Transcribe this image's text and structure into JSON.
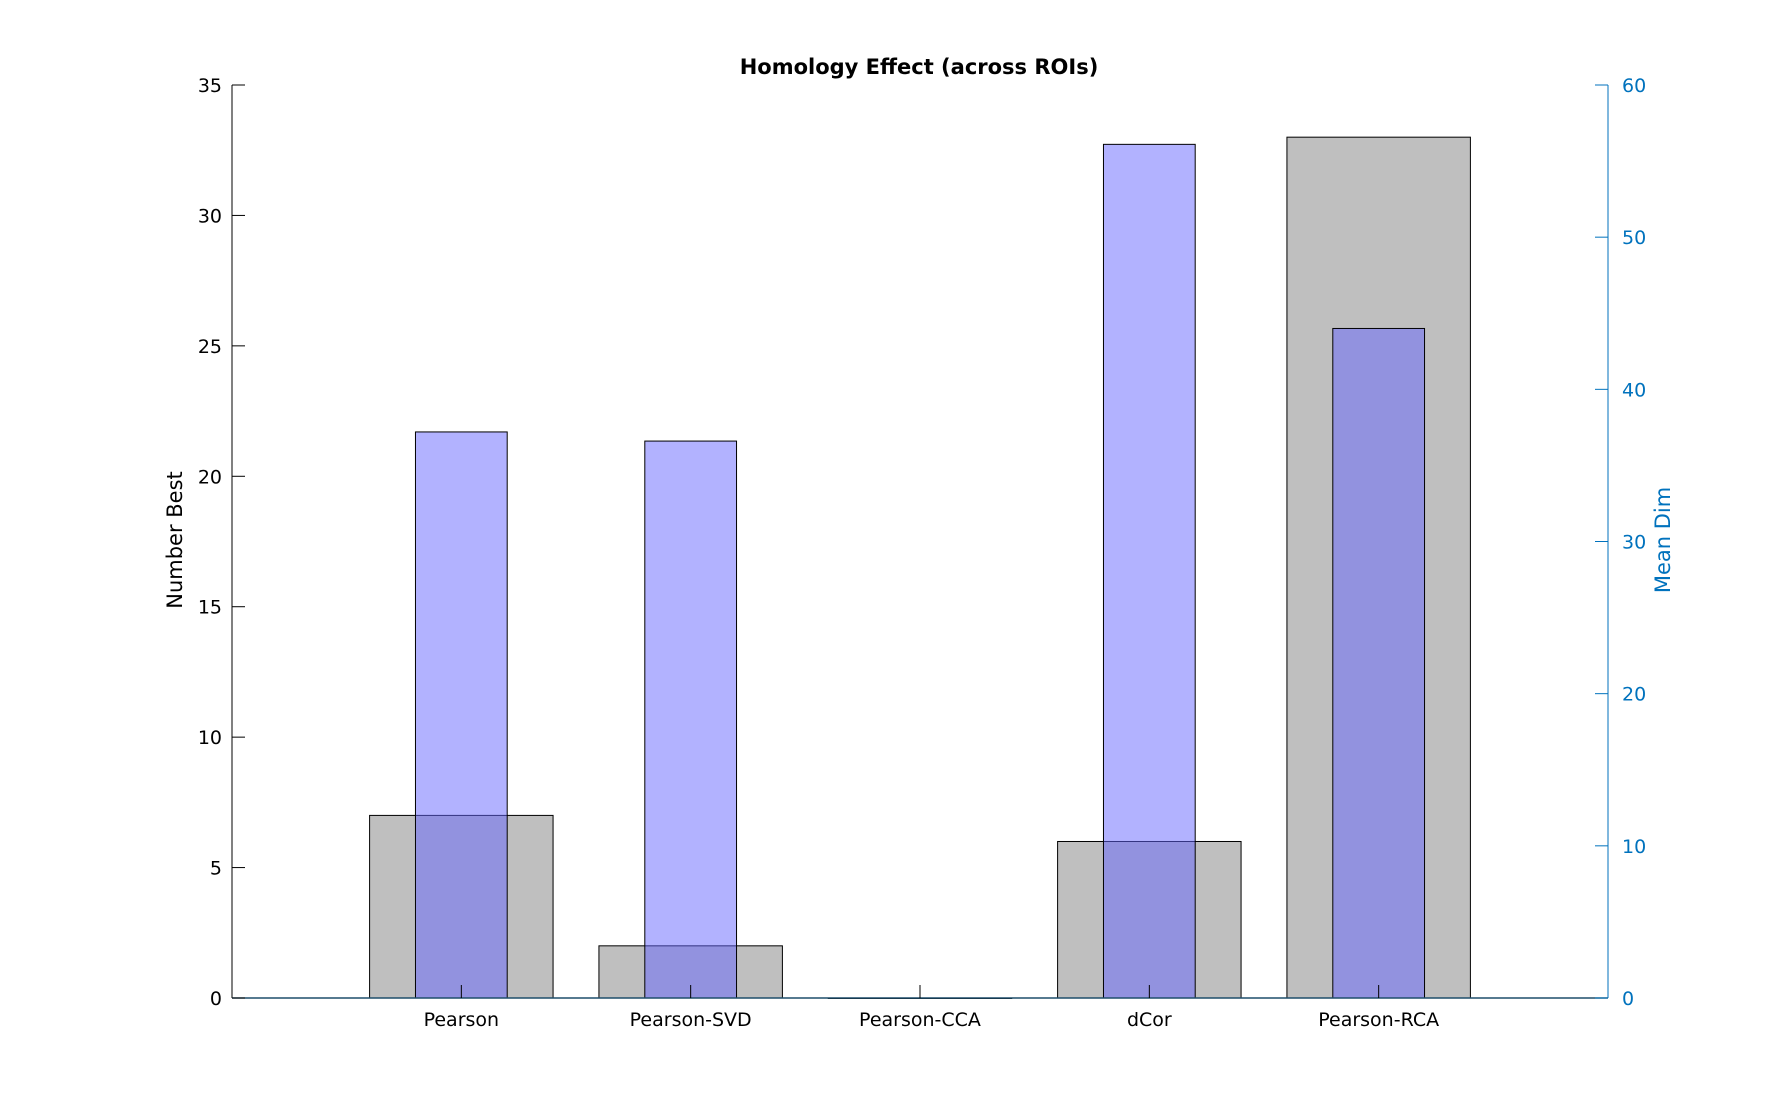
{
  "chart_data": {
    "type": "bar",
    "title": "Homology Effect (across ROIs)",
    "categories": [
      "Pearson",
      "Pearson-SVD",
      "Pearson-CCA",
      "dCor",
      "Pearson-RCA"
    ],
    "xlim": [
      0,
      6
    ],
    "left_axis": {
      "label": "Number Best",
      "ylim": [
        0,
        35
      ],
      "ticks": [
        0,
        5,
        10,
        15,
        20,
        25,
        30,
        35
      ],
      "color": "#000000"
    },
    "right_axis": {
      "label": "Mean Dim",
      "ylim": [
        0,
        60
      ],
      "ticks": [
        0,
        10,
        20,
        30,
        40,
        50,
        60
      ],
      "color": "#0072BD"
    },
    "series": [
      {
        "axis": "left",
        "values": [
          7,
          2,
          0,
          6,
          33
        ],
        "color": "#808080",
        "opacity": 0.5
      },
      {
        "axis": "right",
        "values": [
          37.2,
          36.6,
          0,
          56.1,
          44.0
        ],
        "color": "#6666FF",
        "opacity": 0.5
      }
    ]
  }
}
